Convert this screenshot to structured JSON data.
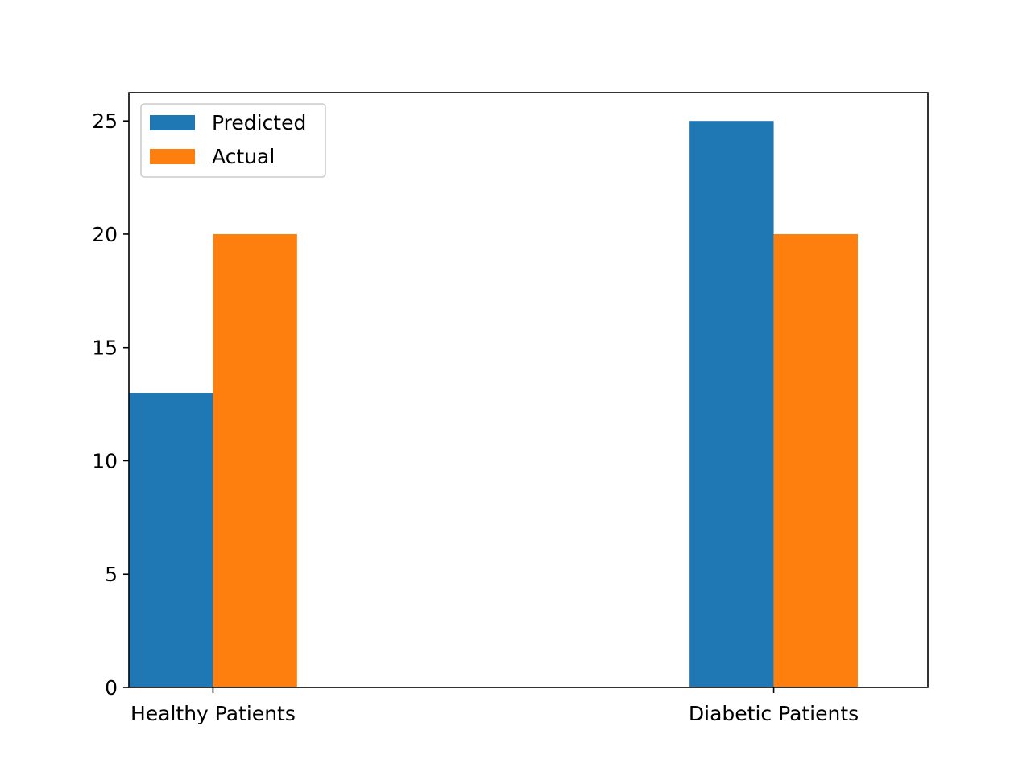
{
  "chart_data": {
    "type": "bar",
    "title": "",
    "xlabel": "",
    "ylabel": "",
    "categories": [
      "Healthy Patients",
      "Diabetic Patients"
    ],
    "series": [
      {
        "name": "Predicted",
        "color": "#1f77b4",
        "values": [
          13,
          25
        ]
      },
      {
        "name": "Actual",
        "color": "#ff7f0e",
        "values": [
          20,
          20
        ]
      }
    ],
    "yticks": [
      0,
      5,
      10,
      15,
      20,
      25
    ],
    "ylim": [
      0,
      26.25
    ],
    "grid": false,
    "legend_position": "upper-left"
  }
}
